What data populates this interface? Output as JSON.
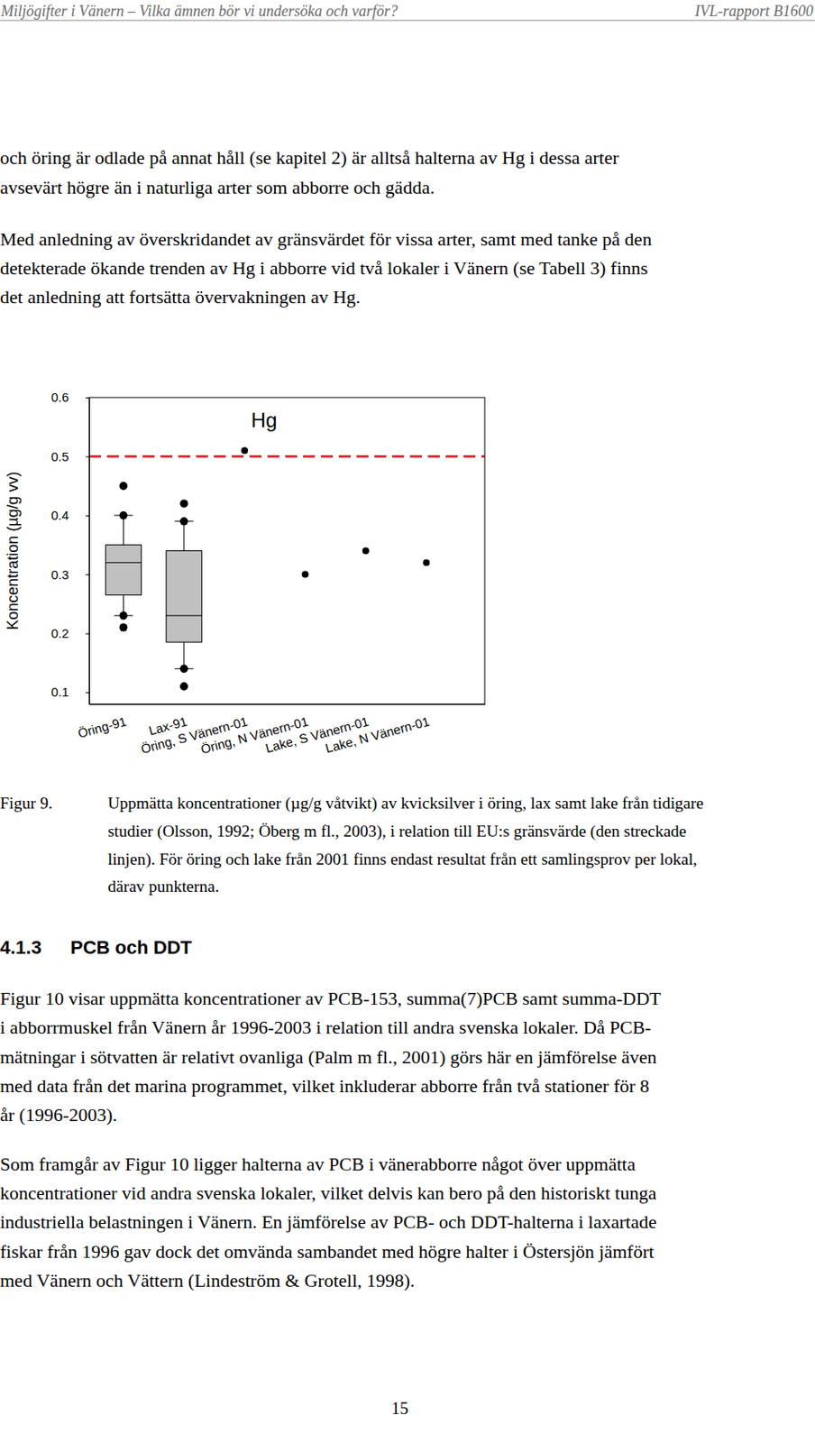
{
  "header": {
    "title": "Miljögifter i Vänern – Vilka ämnen bör vi undersöka och varför?",
    "report": "IVL-rapport B1600"
  },
  "paragraphs_before": [
    [
      "och öring är odlade på annat håll (se kapitel 2) är alltså halterna av Hg i dessa arter",
      "avsevärt högre än i naturliga arter som abborre och gädda."
    ],
    [
      "Med anledning av överskridandet av gränsvärdet för vissa arter, samt med tanke på den",
      "detekterade ökande trenden av Hg i abborre vid två lokaler i Vänern (se Tabell 3) finns",
      "det anledning att fortsätta övervakningen av Hg."
    ]
  ],
  "chart_data": {
    "type": "box",
    "title": "Hg",
    "y_label": "Koncentration (µg/g vv)",
    "categories": [
      "Öring-91",
      "Lax-91",
      "Öring, S Vänern-01",
      "Öring, N Vänern-01",
      "Lake, S Vänern-01",
      "Lake, N Vänern-01"
    ],
    "boxes": [
      {
        "min": 0.23,
        "q1": 0.265,
        "median": 0.32,
        "q3": 0.35,
        "max": 0.4,
        "outliers": [
          0.45,
          0.4,
          0.23,
          0.21
        ]
      },
      {
        "min": 0.14,
        "q1": 0.185,
        "median": 0.23,
        "q3": 0.34,
        "max": 0.39,
        "outliers": [
          0.42,
          0.39,
          0.14,
          0.11
        ]
      },
      null,
      null,
      null,
      null
    ],
    "values": [
      null,
      null,
      0.51,
      0.3,
      0.34,
      0.32
    ],
    "color": "#c0c0c0",
    "marker": "circle",
    "limit": {
      "value": 0.5,
      "color": "#e8202a",
      "line_style": "dashed"
    },
    "ylim": [
      0.08,
      0.6
    ],
    "yticks": [
      0.1,
      0.2,
      0.3,
      0.4,
      0.5,
      0.6
    ],
    "grid": false
  },
  "caption": {
    "label": "Figur 9.",
    "lines": [
      "Uppmätta koncentrationer (µg/g våtvikt) av kvicksilver i öring, lax samt lake från tidigare",
      "studier (Olsson, 1992; Öberg m fl., 2003), i relation till EU:s gränsvärde (den streckade",
      "linjen). För öring och lake från 2001 finns endast resultat från ett samlingsprov per lokal,",
      "därav punkterna."
    ]
  },
  "section": {
    "number": "4.1.3",
    "title": "PCB och DDT"
  },
  "paragraphs_after": [
    [
      "Figur 10 visar uppmätta koncentrationer av PCB-153, summa(7)PCB samt summa-DDT",
      "i abborrmuskel från Vänern år 1996-2003 i relation till andra svenska lokaler. Då PCB-",
      "mätningar i sötvatten är relativt ovanliga (Palm m fl., 2001) görs här en jämförelse även",
      "med data från det marina programmet, vilket inkluderar abborre från två stationer för 8",
      "år (1996-2003)."
    ],
    [
      "Som framgår av Figur 10 ligger halterna av PCB i vänerabborre något över uppmätta",
      "koncentrationer vid andra svenska lokaler, vilket delvis kan bero på den historiskt tunga",
      "industriella belastningen i Vänern. En jämförelse av PCB- och DDT-halterna i laxartade",
      "fiskar från 1996 gav dock det omvända sambandet med högre halter i Östersjön jämfört",
      "med Vänern och Vättern (Lindeström & Grotell, 1998)."
    ]
  ],
  "page_number": "15"
}
